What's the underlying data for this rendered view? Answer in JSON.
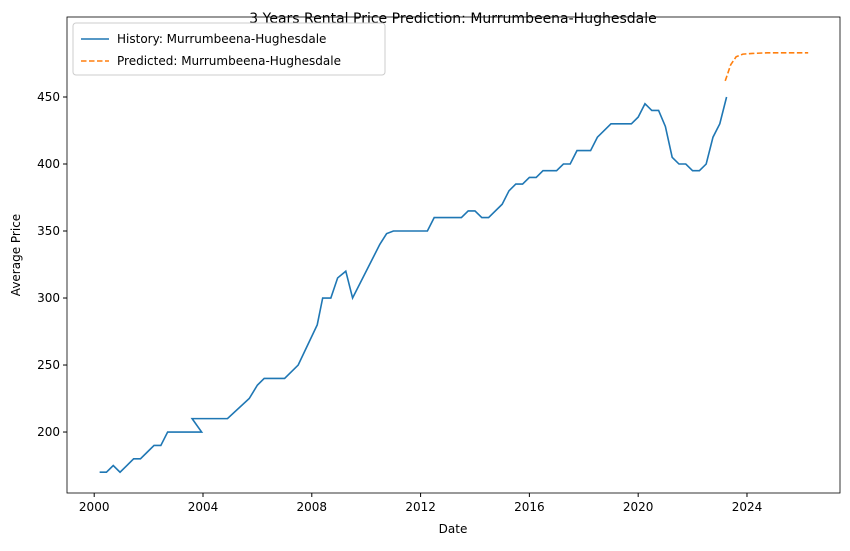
{
  "chart_data": {
    "type": "line",
    "title": "3 Years Rental Price Prediction: Murrumbeena-Hughesdale",
    "x_label": "Date",
    "y_label": "Average Price",
    "xlim": [
      1999.0,
      2027.42
    ],
    "ylim": [
      154.5,
      509.7
    ],
    "xticks": [
      2000,
      2004,
      2008,
      2012,
      2016,
      2020,
      2024
    ],
    "yticks": [
      200,
      250,
      300,
      350,
      400,
      450
    ],
    "legend": "upper-left",
    "series": [
      {
        "name": "History: Murrumbeena-Hughesdale",
        "color": "#1f77b4",
        "dash": "solid",
        "x": [
          2000.2,
          2000.45,
          2000.7,
          2000.95,
          2001.2,
          2001.45,
          2001.7,
          2001.95,
          2002.2,
          2002.45,
          2002.7,
          2002.95,
          2003.2,
          2003.45,
          2003.95,
          2003.6,
          2004.9,
          2005.7,
          2006.0,
          2006.25,
          2007.0,
          2007.5,
          2008.2,
          2008.4,
          2008.7,
          2008.95,
          2009.25,
          2009.5,
          2010.5,
          2010.75,
          2011.0,
          2012.25,
          2012.5,
          2013.5,
          2013.75,
          2014.0,
          2014.25,
          2014.5,
          2015.0,
          2015.25,
          2015.5,
          2015.75,
          2016.0,
          2016.25,
          2016.5,
          2017.0,
          2017.25,
          2017.5,
          2017.75,
          2018.25,
          2018.5,
          2019.0,
          2019.75,
          2020.0,
          2020.25,
          2020.5,
          2020.75,
          2021.0,
          2021.25,
          2021.5,
          2021.75,
          2022.0,
          2022.25,
          2022.5,
          2022.75,
          2023.0,
          2023.25
        ],
        "values": [
          170,
          170,
          175,
          170,
          175,
          180,
          180,
          185,
          190,
          190,
          200,
          200,
          200,
          200,
          200,
          210,
          210,
          225,
          235,
          240,
          240,
          250,
          280,
          300,
          300,
          315,
          320,
          300,
          340,
          348,
          350,
          350,
          360,
          360,
          365,
          365,
          360,
          360,
          370,
          380,
          385,
          385,
          390,
          390,
          395,
          395,
          400,
          400,
          410,
          410,
          420,
          430,
          430,
          435,
          445,
          440,
          440,
          428,
          405,
          400,
          400,
          395,
          395,
          400,
          420,
          430,
          450
        ]
      },
      {
        "name": "Predicted: Murrumbeena-Hughesdale",
        "color": "#ff7f0e",
        "dash": "dashed",
        "x": [
          2023.2,
          2023.4,
          2023.6,
          2023.85,
          2024.2,
          2024.75,
          2025.5,
          2026.25
        ],
        "values": [
          462,
          474,
          480,
          482,
          482.5,
          483,
          483,
          483
        ]
      }
    ]
  }
}
